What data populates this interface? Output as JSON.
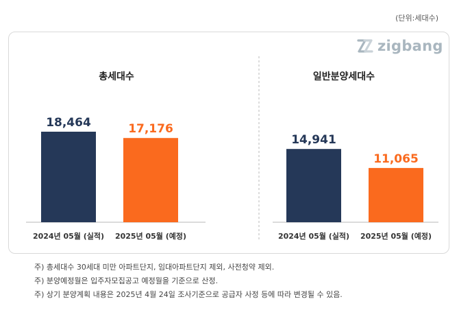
{
  "unit_label": "(단위:세대수)",
  "logo": {
    "text": "zigbang"
  },
  "colors": {
    "actual": "#253858",
    "planned": "#fa6a1e",
    "axis": "#cfcfcf",
    "divider": "#b9b9b9",
    "logo": "#a9b6bf"
  },
  "chart_data": [
    {
      "type": "bar",
      "title": "총세대수",
      "categories": [
        "2024년 05월 (실적)",
        "2025년 05월 (예정)"
      ],
      "values": [
        18464,
        17176
      ],
      "value_labels": [
        "18,464",
        "17,176"
      ]
    },
    {
      "type": "bar",
      "title": "일반분양세대수",
      "categories": [
        "2024년 05월 (실적)",
        "2025년 05월 (예정)"
      ],
      "values": [
        14941,
        11065
      ],
      "value_labels": [
        "14,941",
        "11,065"
      ]
    }
  ],
  "notes": [
    "주) 총세대수 30세대 미만 아파트단지, 임대아파트단지 제외, 사전청약 제외.",
    "주) 분양예정월은 입주자모집공고 예정월을 기준으로 산정.",
    "주) 상기 분양계획 내용은 2025년 4월  24일  조사기준으로 공급자 사정 등에 따라 변경될 수 있음."
  ]
}
